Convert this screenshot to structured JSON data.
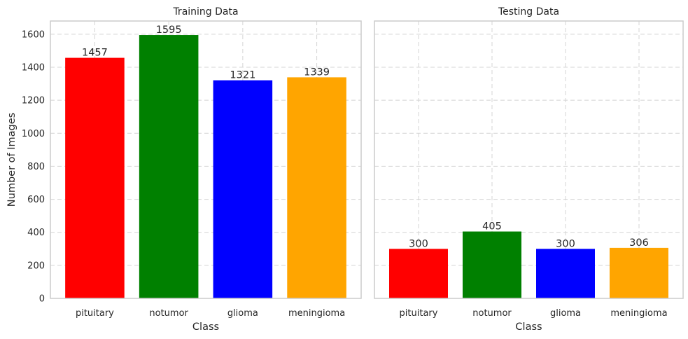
{
  "chart_data": [
    {
      "type": "bar",
      "title": "Training Data",
      "xlabel": "Class",
      "ylabel": "Number of Images",
      "categories": [
        "pituitary",
        "notumor",
        "glioma",
        "meningioma"
      ],
      "values": [
        1457,
        1595,
        1321,
        1339
      ],
      "value_labels": [
        "1457",
        "1595",
        "1321",
        "1339"
      ],
      "colors": [
        "#ff0000",
        "#008000",
        "#0000ff",
        "#ffa500"
      ],
      "ylim": [
        0,
        1680
      ],
      "yticks": [
        0,
        200,
        400,
        600,
        800,
        1000,
        1200,
        1400,
        1600
      ],
      "ytick_labels": [
        "0",
        "200",
        "400",
        "600",
        "800",
        "1000",
        "1200",
        "1400",
        "1600"
      ],
      "grid": true
    },
    {
      "type": "bar",
      "title": "Testing Data",
      "xlabel": "Class",
      "ylabel": "",
      "categories": [
        "pituitary",
        "notumor",
        "glioma",
        "meningioma"
      ],
      "values": [
        300,
        405,
        300,
        306
      ],
      "value_labels": [
        "300",
        "405",
        "300",
        "306"
      ],
      "colors": [
        "#ff0000",
        "#008000",
        "#0000ff",
        "#ffa500"
      ],
      "ylim": [
        0,
        1680
      ],
      "yticks": [
        0,
        200,
        400,
        600,
        800,
        1000,
        1200,
        1400,
        1600
      ],
      "ytick_labels": [],
      "grid": true,
      "sharey": true
    }
  ]
}
